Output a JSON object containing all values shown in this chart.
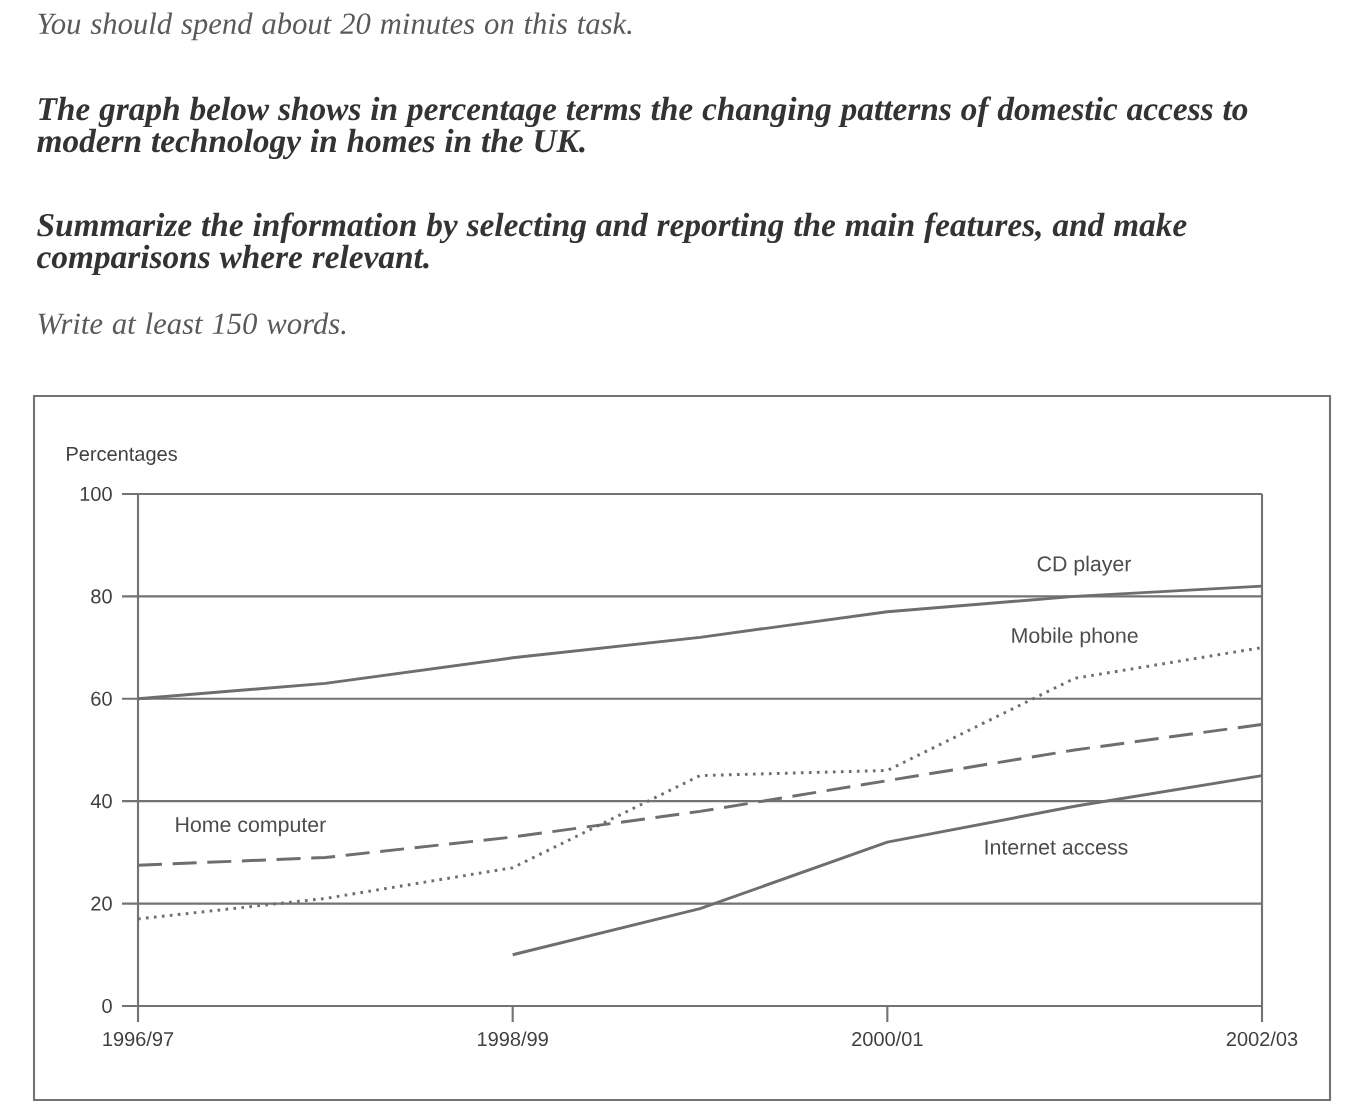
{
  "chart_data": {
    "type": "line",
    "title": "The graph below shows in percentage terms the changing patterns of domestic access to modern technology in homes in the UK.",
    "annotations": [
      "You should spend about 20 minutes on this task.",
      "Summarize the information by selecting and reporting the main features, and make comparisons where relevant.",
      "Write at least 150 words."
    ],
    "ylabel": "Percentages",
    "categories": [
      "1996/97",
      null,
      "1998/99",
      null,
      "2000/01",
      null,
      "2002/03"
    ],
    "ylim": [
      0,
      100
    ],
    "yticks": [
      0,
      20,
      40,
      60,
      80,
      100
    ],
    "grid": "y",
    "marker": "none",
    "series": [
      {
        "name": "CD player",
        "color": "#6e6e6e",
        "line_style": "solid",
        "values": [
          60,
          63,
          68,
          72,
          77,
          80,
          82
        ]
      },
      {
        "name": "Mobile phone",
        "color": "#6e6e6e",
        "line_style": "dotted",
        "values": [
          17,
          21,
          27,
          45,
          46,
          64,
          70
        ]
      },
      {
        "name": "Home computer",
        "color": "#6e6e6e",
        "line_style": "dashed",
        "values": [
          27.5,
          29,
          33,
          38,
          44,
          50,
          55
        ]
      },
      {
        "name": "Internet access",
        "color": "#6e6e6e",
        "line_style": "solid",
        "values": [
          null,
          null,
          10,
          19,
          32,
          39,
          45
        ]
      }
    ]
  }
}
